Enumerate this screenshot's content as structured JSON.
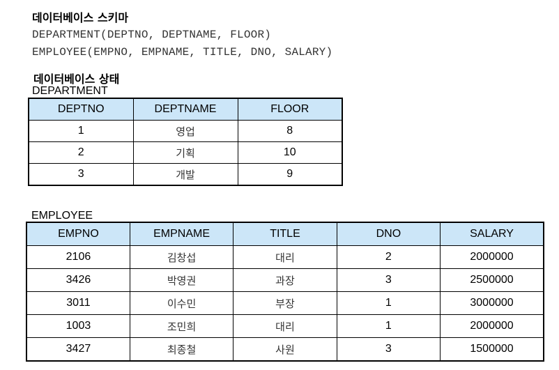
{
  "schema": {
    "heading": "데이터베이스 스키마",
    "lines": [
      "DEPARTMENT(DEPTNO, DEPTNAME, FLOOR)",
      "EMPLOYEE(EMPNO, EMPNAME, TITLE, DNO, SALARY)"
    ]
  },
  "state": {
    "heading": "데이터베이스 상태"
  },
  "department": {
    "name": "DEPARTMENT",
    "headers": [
      "DEPTNO",
      "DEPTNAME",
      "FLOOR"
    ],
    "rows": [
      [
        "1",
        "영업",
        "8"
      ],
      [
        "2",
        "기획",
        "10"
      ],
      [
        "3",
        "개발",
        "9"
      ]
    ]
  },
  "employee": {
    "name": "EMPLOYEE",
    "headers": [
      "EMPNO",
      "EMPNAME",
      "TITLE",
      "DNO",
      "SALARY"
    ],
    "rows": [
      [
        "2106",
        "김창섭",
        "대리",
        "2",
        "2000000"
      ],
      [
        "3426",
        "박영권",
        "과장",
        "3",
        "2500000"
      ],
      [
        "3011",
        "이수민",
        "부장",
        "1",
        "3000000"
      ],
      [
        "1003",
        "조민희",
        "대리",
        "1",
        "2000000"
      ],
      [
        "3427",
        "최종철",
        "사원",
        "3",
        "1500000"
      ]
    ]
  },
  "colors": {
    "header_bg": "#cce6f8",
    "border": "#000000"
  }
}
